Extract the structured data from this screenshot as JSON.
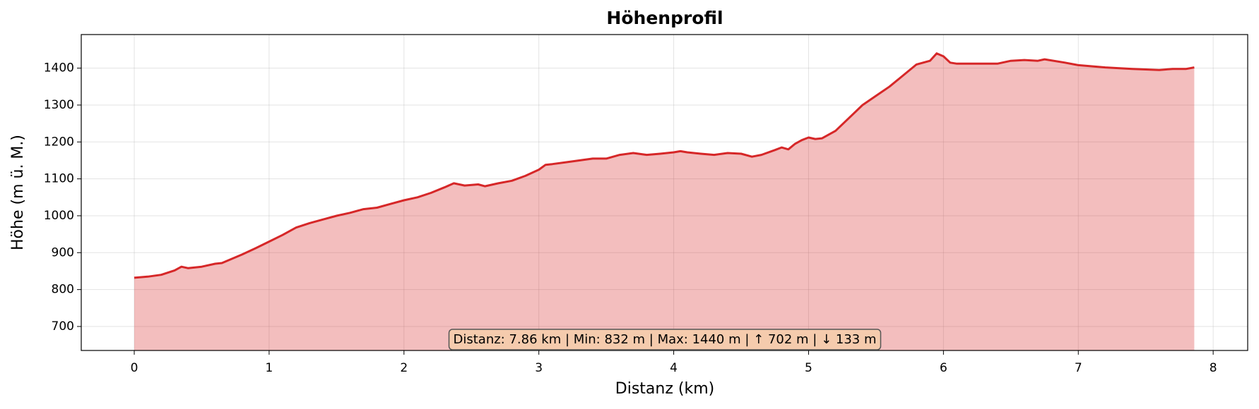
{
  "chart_data": {
    "type": "area-line",
    "title": "Höhenprofil",
    "x_label": "Distanz (km)",
    "y_label": "Höhe (m ü. M.)",
    "annotation": "Distanz: 7.86 km | Min: 832 m | Max: 1440 m | ↑ 702 m | ↓ 133 m",
    "x": [
      0,
      0.1,
      0.2,
      0.3,
      0.35,
      0.4,
      0.5,
      0.6,
      0.65,
      0.8,
      0.9,
      1.0,
      1.1,
      1.2,
      1.3,
      1.4,
      1.5,
      1.6,
      1.7,
      1.8,
      1.9,
      2.0,
      2.1,
      2.2,
      2.3,
      2.37,
      2.45,
      2.55,
      2.6,
      2.7,
      2.8,
      2.9,
      3.0,
      3.05,
      3.1,
      3.2,
      3.3,
      3.4,
      3.5,
      3.6,
      3.7,
      3.8,
      3.9,
      4.0,
      4.05,
      4.1,
      4.2,
      4.3,
      4.4,
      4.5,
      4.58,
      4.65,
      4.75,
      4.8,
      4.85,
      4.9,
      4.95,
      5.0,
      5.05,
      5.1,
      5.2,
      5.3,
      5.4,
      5.5,
      5.6,
      5.7,
      5.8,
      5.9,
      5.95,
      6.0,
      6.05,
      6.1,
      6.3,
      6.4,
      6.5,
      6.6,
      6.7,
      6.75,
      6.9,
      7.0,
      7.2,
      7.4,
      7.6,
      7.7,
      7.8,
      7.86
    ],
    "series": [
      {
        "name": "Höhe",
        "color": "#d62728",
        "values": [
          832,
          835,
          840,
          852,
          862,
          858,
          862,
          870,
          872,
          895,
          912,
          930,
          948,
          968,
          980,
          990,
          1000,
          1008,
          1018,
          1022,
          1032,
          1042,
          1050,
          1062,
          1077,
          1088,
          1082,
          1085,
          1080,
          1088,
          1095,
          1108,
          1125,
          1138,
          1140,
          1145,
          1150,
          1155,
          1155,
          1165,
          1170,
          1165,
          1168,
          1172,
          1175,
          1172,
          1168,
          1165,
          1170,
          1168,
          1160,
          1165,
          1178,
          1185,
          1180,
          1195,
          1205,
          1212,
          1208,
          1210,
          1230,
          1265,
          1300,
          1325,
          1350,
          1380,
          1410,
          1420,
          1440,
          1432,
          1415,
          1412,
          1412,
          1412,
          1420,
          1422,
          1420,
          1424,
          1415,
          1408,
          1402,
          1398,
          1395,
          1398,
          1398,
          1402
        ]
      }
    ],
    "xlim": [
      -0.393,
      8.256
    ],
    "ylim": [
      635,
      1491
    ],
    "xticks": [
      0,
      1,
      2,
      3,
      4,
      5,
      6,
      7,
      8
    ],
    "yticks": [
      700,
      800,
      900,
      1000,
      1100,
      1200,
      1300,
      1400
    ],
    "grid": true
  }
}
